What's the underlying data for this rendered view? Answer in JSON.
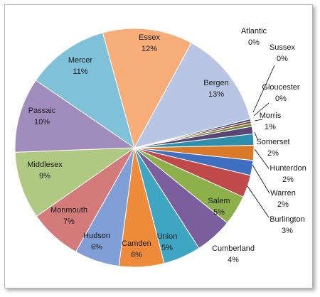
{
  "chart_data": {
    "type": "pie",
    "title": "",
    "start_angle_deg": 1,
    "direction": "clockwise",
    "slices": [
      {
        "name": "Atlantic",
        "percent": "0%",
        "value": 0.3,
        "color": "#2E4A75"
      },
      {
        "name": "Sussex",
        "percent": "0%",
        "value": 0.3,
        "color": "#8B2F2E"
      },
      {
        "name": "Gloucester",
        "percent": "0%",
        "value": 0.4,
        "color": "#6E8A33"
      },
      {
        "name": "Morris",
        "percent": "1%",
        "value": 1.0,
        "color": "#5A4577"
      },
      {
        "name": "Somerset",
        "percent": "2%",
        "value": 1.5,
        "color": "#2F8FAA"
      },
      {
        "name": "Hunterdon",
        "percent": "2%",
        "value": 2.0,
        "color": "#D87A2A"
      },
      {
        "name": "Warren",
        "percent": "2%",
        "value": 2.0,
        "color": "#3F6FC0"
      },
      {
        "name": "Burlington",
        "percent": "3%",
        "value": 3.0,
        "color": "#C04A49"
      },
      {
        "name": "Cumberland",
        "percent": "4%",
        "value": 4.0,
        "color": "#8DB04A"
      },
      {
        "name": "Salem",
        "percent": "5%",
        "value": 5.0,
        "color": "#7A5E9E"
      },
      {
        "name": "Union",
        "percent": "5%",
        "value": 5.0,
        "color": "#3EA6C2"
      },
      {
        "name": "Camden",
        "percent": "6%",
        "value": 6.0,
        "color": "#EE8B3B"
      },
      {
        "name": "Hudson",
        "percent": "6%",
        "value": 6.0,
        "color": "#7F9FD6"
      },
      {
        "name": "Monmouth",
        "percent": "7%",
        "value": 7.0,
        "color": "#D27B7A"
      },
      {
        "name": "Middlesex",
        "percent": "9%",
        "value": 9.0,
        "color": "#B0C982"
      },
      {
        "name": "Passaic",
        "percent": "10%",
        "value": 10.0,
        "color": "#A08DBD"
      },
      {
        "name": "Mercer",
        "percent": "11%",
        "value": 11.0,
        "color": "#7FC1D9"
      },
      {
        "name": "Essex",
        "percent": "12%",
        "value": 12.0,
        "color": "#F6AD78"
      },
      {
        "name": "Bergen",
        "percent": "13%",
        "value": 13.0,
        "color": "#B8C6E3"
      }
    ]
  }
}
